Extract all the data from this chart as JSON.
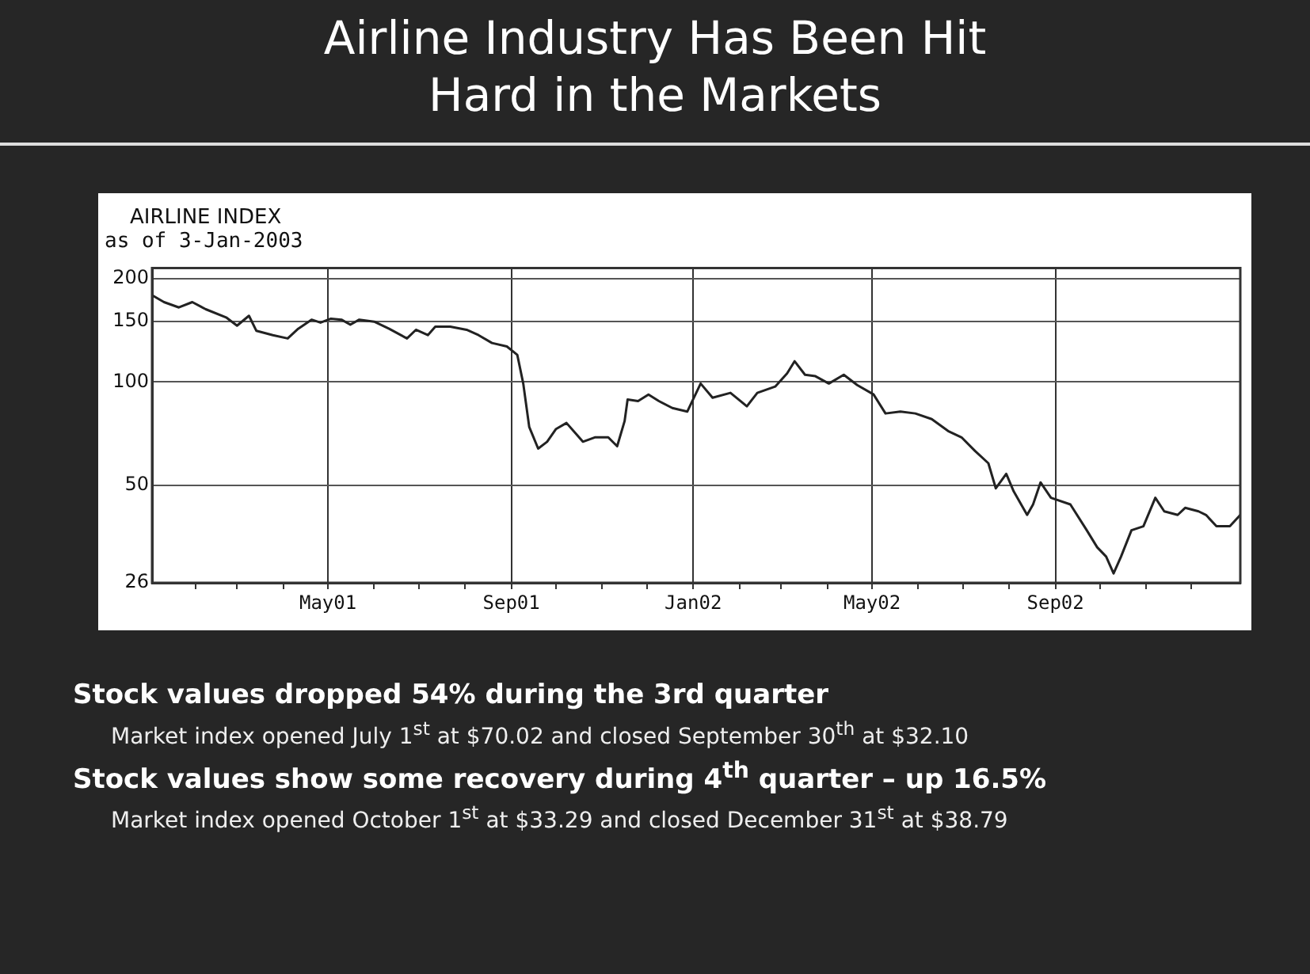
{
  "chart_data": {
    "type": "line",
    "title": "Airline Industry Has Been Hit Hard in the Markets",
    "subtitle": "AIRLINE INDEX",
    "annotations": [
      "as of 3-Jan-2003",
      "Stock values dropped 54% during the 3rd quarter",
      "Market index opened July 1$^{st}$ at $70.02 and closed September 30$^{th}$ at $32.10",
      "Stock values show some recovery during 4$^{th}$ quarter – up 16.5%",
      "Market index opened October 1$^{st}$ at $33.29 and closed December 31$^{st}$ at $38.79"
    ],
    "x": [
      "2001-01-03",
      "2001-01-11",
      "2001-01-21",
      "2001-01-30",
      "2001-02-08",
      "2001-02-22",
      "2001-03-01",
      "2001-03-09",
      "2001-03-14",
      "2001-03-25",
      "2001-04-04",
      "2001-04-11",
      "2001-04-20",
      "2001-04-26",
      "2001-05-03",
      "2001-05-10",
      "2001-05-16",
      "2001-05-22",
      "2001-06-01",
      "2001-06-11",
      "2001-06-23",
      "2001-06-29",
      "2001-07-07",
      "2001-07-12",
      "2001-07-22",
      "2001-08-02",
      "2001-08-10",
      "2001-08-19",
      "2001-08-29",
      "2001-09-05",
      "2001-09-09",
      "2001-09-13",
      "2001-09-19",
      "2001-09-25",
      "2001-10-01",
      "2001-10-08",
      "2001-10-14",
      "2001-10-19",
      "2001-10-27",
      "2001-11-05",
      "2001-11-11",
      "2001-11-16",
      "2001-11-18",
      "2001-11-25",
      "2001-12-02",
      "2001-12-09",
      "2001-12-18",
      "2001-12-28",
      "2002-01-06",
      "2002-01-14",
      "2002-01-26",
      "2002-02-06",
      "2002-02-13",
      "2002-02-25",
      "2002-03-05",
      "2002-03-10",
      "2002-03-17",
      "2002-03-24",
      "2002-04-02",
      "2002-04-12",
      "2002-04-21",
      "2002-05-02",
      "2002-05-10",
      "2002-05-20",
      "2002-05-30",
      "2002-06-10",
      "2002-06-21",
      "2002-06-30",
      "2002-07-09",
      "2002-07-18",
      "2002-07-23",
      "2002-07-30",
      "2002-08-04",
      "2002-08-13",
      "2002-08-17",
      "2002-08-22",
      "2002-08-29",
      "2002-09-11",
      "2002-09-22",
      "2002-09-29",
      "2002-10-05",
      "2002-10-10",
      "2002-10-15",
      "2002-10-22",
      "2002-10-30",
      "2002-11-07",
      "2002-11-13",
      "2002-11-22",
      "2002-11-27",
      "2002-12-06",
      "2002-12-11",
      "2002-12-18",
      "2002-12-27",
      "2003-01-03"
    ],
    "values": [
      179,
      171,
      165,
      171,
      163,
      154,
      146,
      156,
      141,
      137,
      134,
      143,
      152,
      149,
      153,
      152,
      147,
      152,
      150,
      143,
      134,
      142,
      137,
      145,
      145,
      142,
      137,
      130,
      127,
      120,
      99,
      74,
      64,
      67,
      73,
      76,
      71,
      67,
      69,
      69,
      65,
      77,
      89,
      88,
      92,
      88,
      84,
      82,
      99,
      90,
      93,
      85,
      93,
      97,
      106,
      115,
      105,
      104,
      99,
      105,
      98,
      92,
      81,
      82,
      81,
      78,
      72,
      69,
      63,
      58,
      49,
      54,
      48,
      41,
      44,
      51,
      46,
      44,
      37,
      33,
      31,
      27.7,
      31,
      37,
      38,
      46,
      42,
      41,
      43,
      42,
      41,
      38,
      38,
      41
    ],
    "color": "#222222",
    "marker": "none",
    "line_style": "solid",
    "xlim": [
      "2001-01-03",
      "2003-01-03"
    ],
    "xticks": [
      {
        "value": "2001-02-01",
        "label": null
      },
      {
        "value": "2001-03-01",
        "label": null
      },
      {
        "value": "2001-04-01",
        "label": null
      },
      {
        "value": "2001-05-01",
        "label": "May01"
      },
      {
        "value": "2001-06-01",
        "label": null
      },
      {
        "value": "2001-07-01",
        "label": null
      },
      {
        "value": "2001-08-01",
        "label": null
      },
      {
        "value": "2001-09-01",
        "label": "Sep01"
      },
      {
        "value": "2001-10-01",
        "label": null
      },
      {
        "value": "2001-11-01",
        "label": null
      },
      {
        "value": "2001-12-01",
        "label": null
      },
      {
        "value": "2002-01-01",
        "label": "Jan02"
      },
      {
        "value": "2002-02-01",
        "label": null
      },
      {
        "value": "2002-03-01",
        "label": null
      },
      {
        "value": "2002-04-01",
        "label": null
      },
      {
        "value": "2002-05-01",
        "label": "May02"
      },
      {
        "value": "2002-06-01",
        "label": null
      },
      {
        "value": "2002-07-01",
        "label": null
      },
      {
        "value": "2002-08-01",
        "label": null
      },
      {
        "value": "2002-09-01",
        "label": "Sep02"
      },
      {
        "value": "2002-10-01",
        "label": null
      },
      {
        "value": "2002-11-01",
        "label": null
      },
      {
        "value": "2002-12-01",
        "label": null
      }
    ],
    "ylim": [
      26,
      215
    ],
    "yticks": [
      26,
      50,
      100,
      150,
      200
    ],
    "log": true,
    "grid": true
  }
}
